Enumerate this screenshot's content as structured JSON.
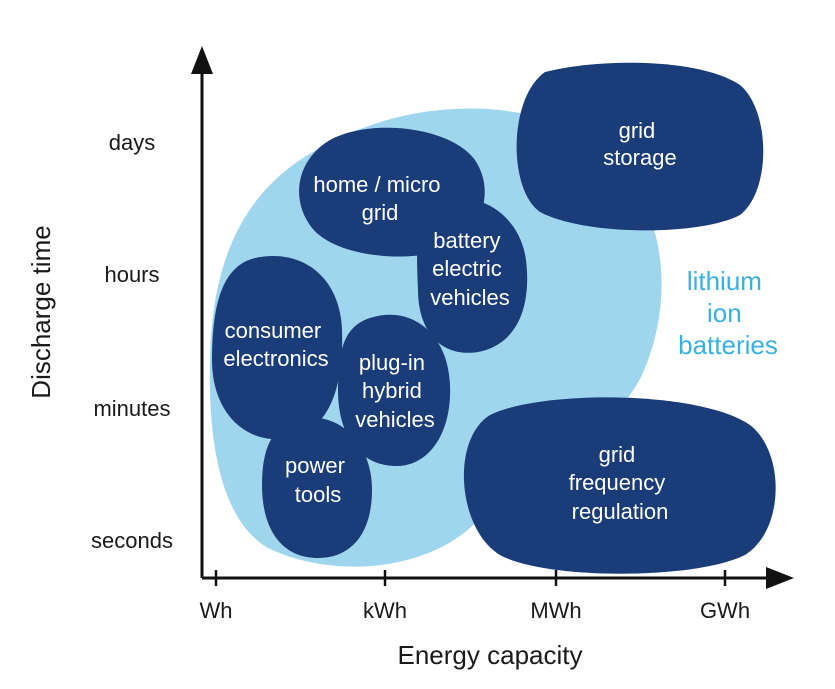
{
  "colors": {
    "region_lithium_ion": "#9fd6ee",
    "application_blob": "#1a3c78",
    "region_label": "#39b0dd",
    "axis": "#111111"
  },
  "axes": {
    "y_title": "Discharge time",
    "x_title": "Energy capacity",
    "y_ticks": [
      "days",
      "hours",
      "minutes",
      "seconds"
    ],
    "x_ticks": [
      "Wh",
      "kWh",
      "MWh",
      "GWh"
    ]
  },
  "region": {
    "label_lines": [
      "lithium",
      "ion",
      "batteries"
    ]
  },
  "applications": [
    {
      "id": "grid-storage",
      "lines": [
        "grid",
        "storage"
      ]
    },
    {
      "id": "home-micro-grid",
      "lines": [
        "home / micro",
        "grid"
      ]
    },
    {
      "id": "battery-electric-vehicles",
      "lines": [
        "battery",
        "electric",
        "vehicles"
      ]
    },
    {
      "id": "consumer-electronics",
      "lines": [
        "consumer",
        "electronics"
      ]
    },
    {
      "id": "plug-in-hybrid-vehicles",
      "lines": [
        "plug-in",
        "hybrid",
        "vehicles"
      ]
    },
    {
      "id": "power-tools",
      "lines": [
        "power",
        "tools"
      ]
    },
    {
      "id": "grid-frequency-regulation",
      "lines": [
        "grid",
        "frequency",
        "regulation"
      ]
    }
  ]
}
